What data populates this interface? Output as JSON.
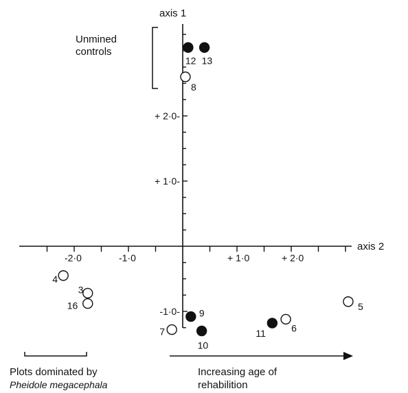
{
  "chart_data": {
    "type": "scatter",
    "title": "",
    "xlabel": "axis 2",
    "ylabel": "axis 1",
    "xlim": [
      -2.5,
      3.0
    ],
    "ylim": [
      -1.5,
      3.3
    ],
    "grid": false,
    "xticks": [
      {
        "value": -2.0,
        "label": "-2·0"
      },
      {
        "value": -1.0,
        "label": "-1·0"
      },
      {
        "value": 1.0,
        "label": "+ 1·0"
      },
      {
        "value": 2.0,
        "label": "+ 2·0"
      }
    ],
    "yticks": [
      {
        "value": 2.0,
        "label": "+ 2·0-"
      },
      {
        "value": 1.0,
        "label": "+ 1·0-"
      },
      {
        "value": -1.0,
        "label": "-1·0-"
      }
    ],
    "series": [
      {
        "marker": "open",
        "points": [
          {
            "label": "8",
            "x": 0.05,
            "y": 2.6
          },
          {
            "label": "4",
            "x": -2.2,
            "y": -0.45
          },
          {
            "label": "3",
            "x": -1.75,
            "y": -0.72
          },
          {
            "label": "16",
            "x": -1.75,
            "y": -0.88
          },
          {
            "label": "7",
            "x": -0.2,
            "y": -1.28
          },
          {
            "label": "6",
            "x": 1.9,
            "y": -1.12
          },
          {
            "label": "5",
            "x": 3.05,
            "y": -0.85
          }
        ]
      },
      {
        "marker": "filled",
        "points": [
          {
            "label": "12",
            "x": 0.1,
            "y": 3.05
          },
          {
            "label": "13",
            "x": 0.4,
            "y": 3.05
          },
          {
            "label": "9",
            "x": 0.15,
            "y": -1.08
          },
          {
            "label": "10",
            "x": 0.35,
            "y": -1.3
          },
          {
            "label": "11",
            "x": 1.65,
            "y": -1.18
          }
        ]
      }
    ],
    "annotations": {
      "unmined_line1": "Unmined",
      "unmined_line2": "controls",
      "pheidole_line1": "Plots dominated by",
      "pheidole_line2": "Pheidole megacephala",
      "rehab_line1": "Increasing age of",
      "rehab_line2": "rehabilition"
    }
  },
  "colors": {
    "ink": "#111111",
    "background": "#ffffff"
  }
}
